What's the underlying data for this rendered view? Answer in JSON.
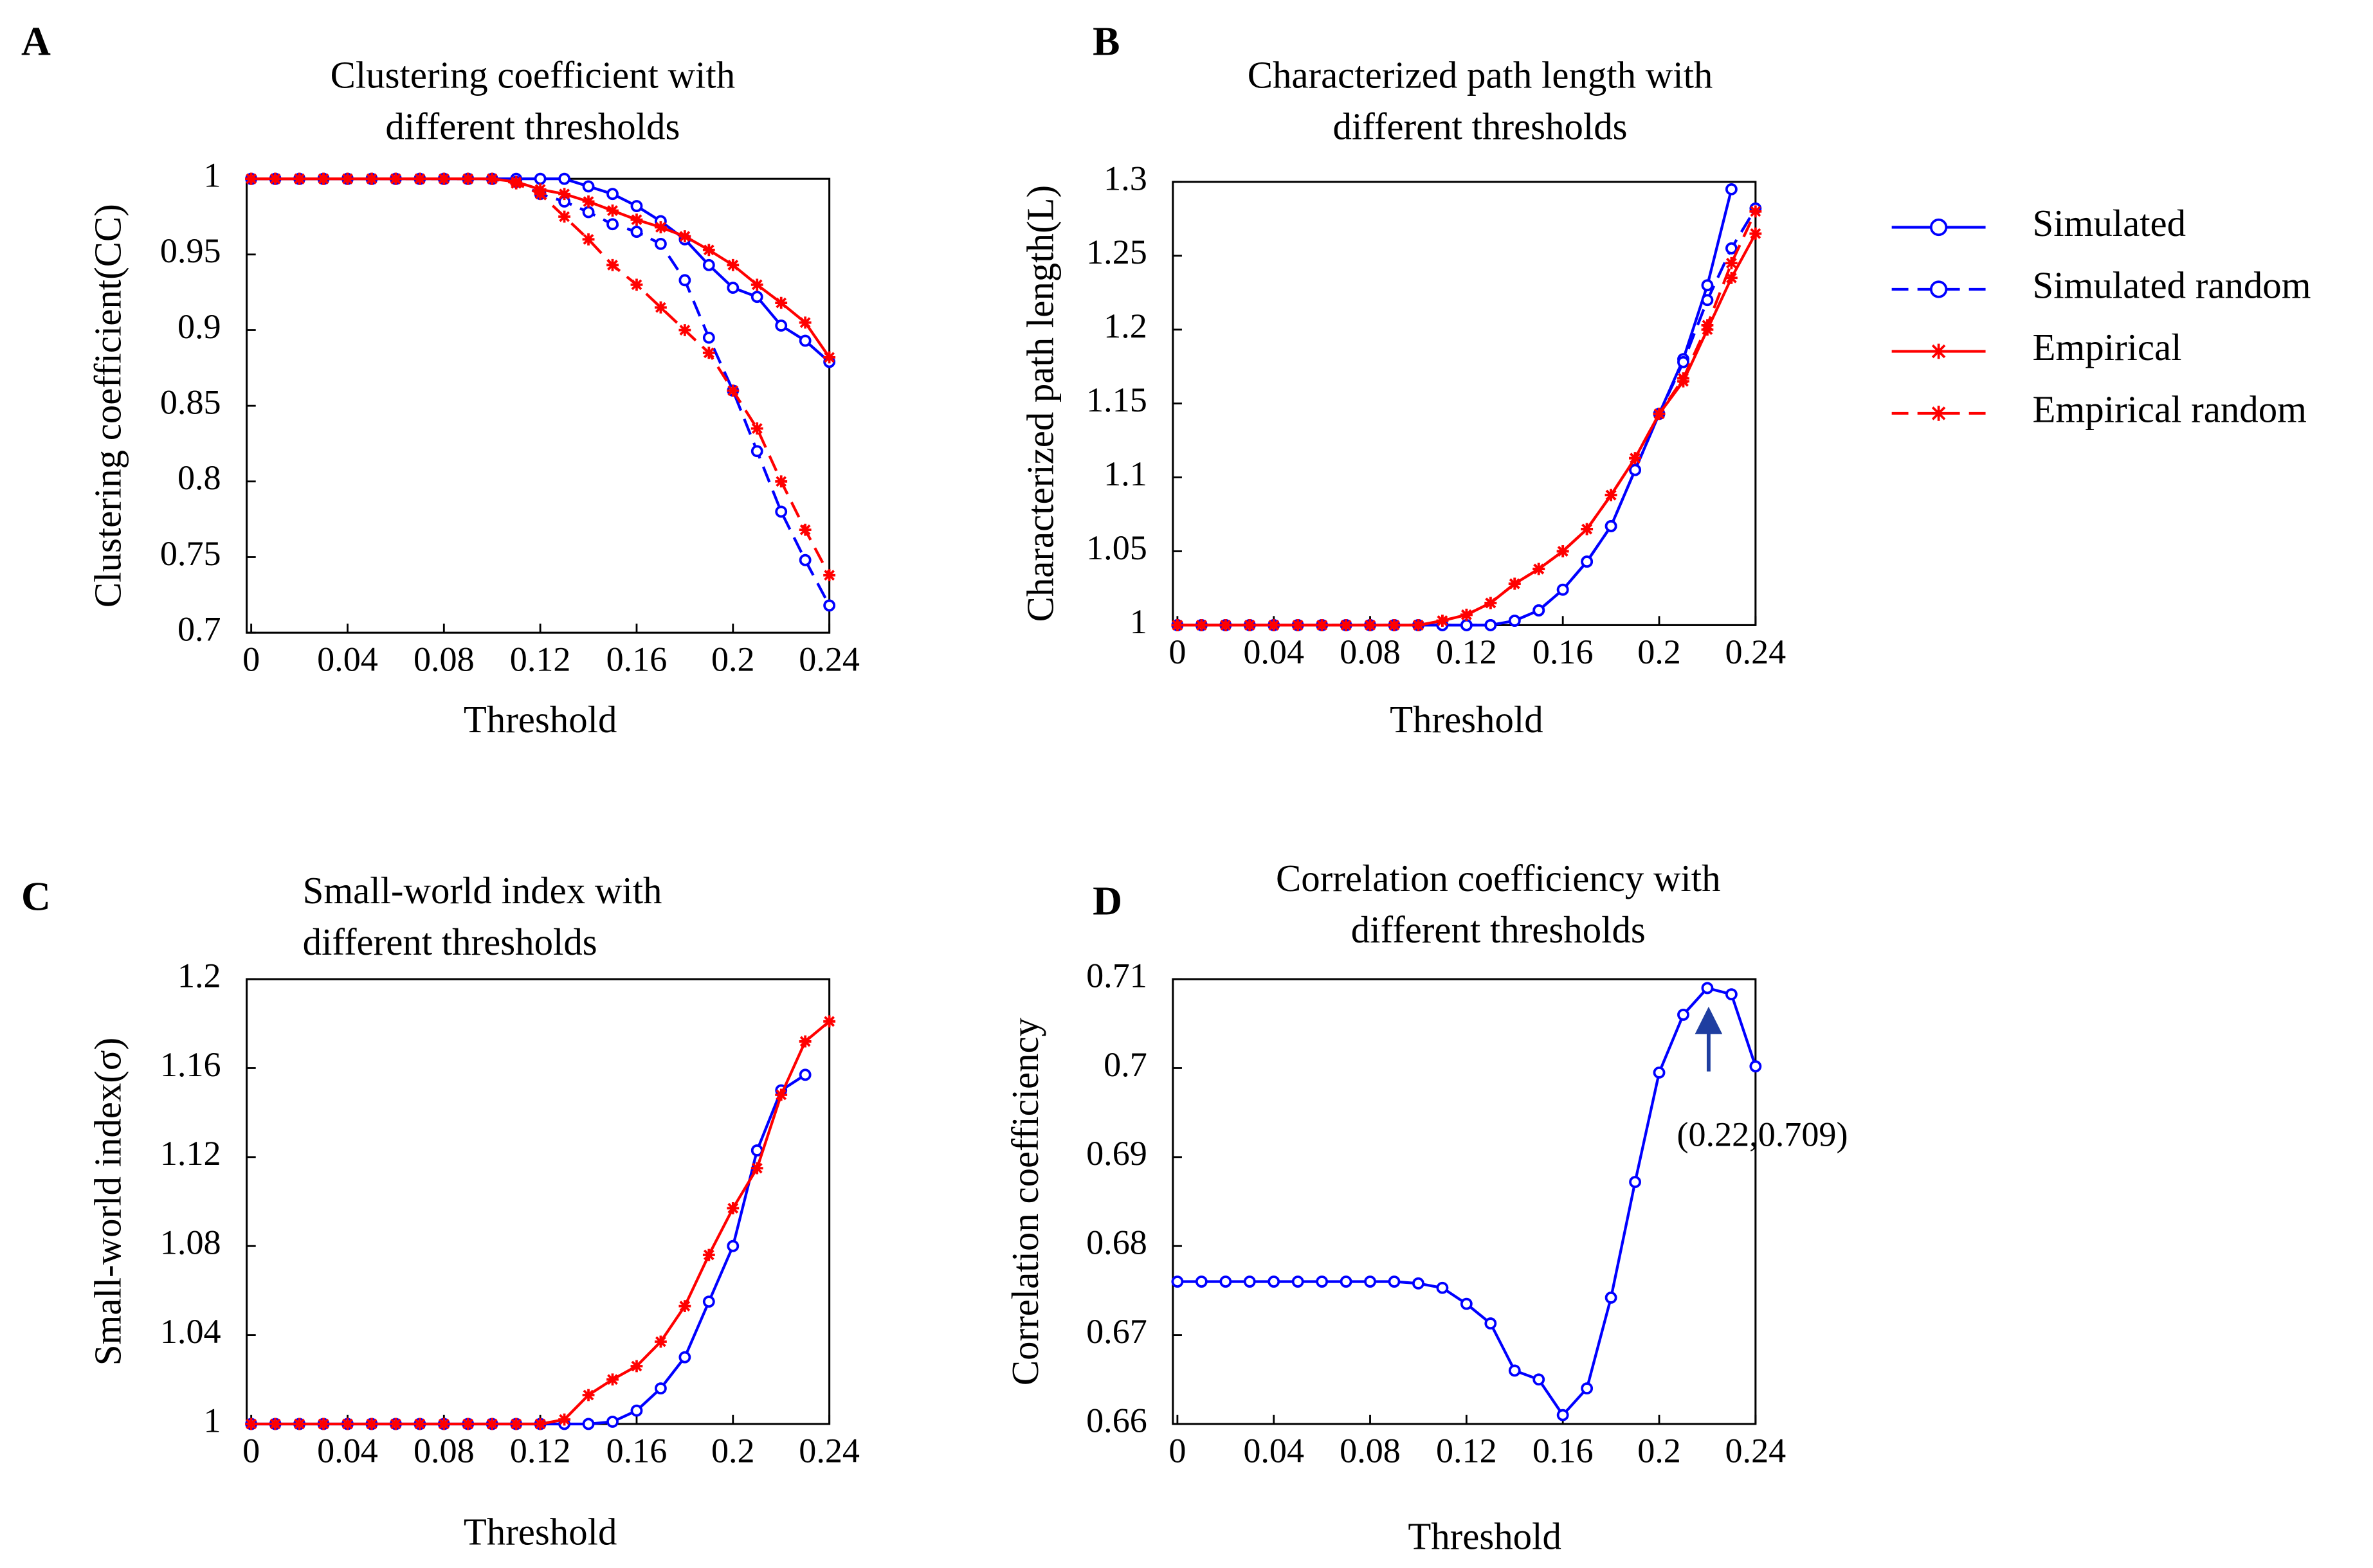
{
  "chart_data": [
    {
      "type": "line",
      "panel": "A",
      "title": [
        "Clustering coefficient with",
        "different thresholds"
      ],
      "x_label": "Threshold",
      "y_label": "Clustering coefficient(CC)",
      "x": [
        0,
        0.01,
        0.02,
        0.03,
        0.04,
        0.05,
        0.06,
        0.07,
        0.08,
        0.09,
        0.1,
        0.11,
        0.12,
        0.13,
        0.14,
        0.15,
        0.16,
        0.17,
        0.18,
        0.19,
        0.2,
        0.21,
        0.22,
        0.23,
        0.24
      ],
      "xlim": [
        0,
        0.24
      ],
      "xticks": [
        0,
        0.04,
        0.08,
        0.12,
        0.16,
        0.2,
        0.24
      ],
      "ylim": [
        0.7,
        1
      ],
      "yticks": [
        0.7,
        0.75,
        0.8,
        0.85,
        0.9,
        0.95,
        1
      ],
      "series": [
        {
          "color": "#0000ff",
          "dashed": false,
          "marker": "circle",
          "values": [
            1,
            1,
            1,
            1,
            1,
            1,
            1,
            1,
            1,
            1,
            1,
            1,
            1,
            1,
            0.995,
            0.99,
            0.982,
            0.972,
            0.96,
            0.943,
            0.928,
            0.922,
            0.903,
            0.893,
            0.879
          ]
        },
        {
          "color": "#0000ff",
          "dashed": true,
          "marker": "circle",
          "values": [
            1,
            1,
            1,
            1,
            1,
            1,
            1,
            1,
            1,
            1,
            1,
            0.998,
            0.99,
            0.985,
            0.978,
            0.97,
            0.965,
            0.957,
            0.933,
            0.895,
            0.86,
            0.82,
            0.78,
            0.748,
            0.718
          ]
        },
        {
          "color": "#ff0000",
          "dashed": false,
          "marker": "star",
          "values": [
            1,
            1,
            1,
            1,
            1,
            1,
            1,
            1,
            1,
            1,
            1,
            0.998,
            0.993,
            0.99,
            0.985,
            0.979,
            0.973,
            0.968,
            0.962,
            0.953,
            0.943,
            0.93,
            0.918,
            0.905,
            0.882
          ]
        },
        {
          "color": "#ff0000",
          "dashed": true,
          "marker": "star",
          "values": [
            1,
            1,
            1,
            1,
            1,
            1,
            1,
            1,
            1,
            1,
            1,
            0.997,
            0.99,
            0.975,
            0.96,
            0.943,
            0.93,
            0.915,
            0.9,
            0.885,
            0.86,
            0.835,
            0.8,
            0.768,
            0.738
          ]
        }
      ]
    },
    {
      "type": "line",
      "panel": "B",
      "title": [
        "Characterized path length with",
        "different thresholds"
      ],
      "x_label": "Threshold",
      "y_label": "Characterized path length(L)",
      "x": [
        0,
        0.01,
        0.02,
        0.03,
        0.04,
        0.05,
        0.06,
        0.07,
        0.08,
        0.09,
        0.1,
        0.11,
        0.12,
        0.13,
        0.14,
        0.15,
        0.16,
        0.17,
        0.18,
        0.19,
        0.2,
        0.21,
        0.22,
        0.23,
        0.24
      ],
      "xlim": [
        0,
        0.24
      ],
      "xticks": [
        0,
        0.04,
        0.08,
        0.12,
        0.16,
        0.2,
        0.24
      ],
      "ylim": [
        1,
        1.3
      ],
      "yticks": [
        1,
        1.05,
        1.1,
        1.15,
        1.2,
        1.25,
        1.3
      ],
      "series": [
        {
          "name": "Simulated",
          "color": "#0000ff",
          "dashed": false,
          "marker": "circle",
          "values": [
            1,
            1,
            1,
            1,
            1,
            1,
            1,
            1,
            1,
            1,
            1,
            1,
            1,
            1,
            1.003,
            1.01,
            1.024,
            1.043,
            1.067,
            1.105,
            1.143,
            1.18,
            1.23,
            1.295,
            null
          ]
        },
        {
          "name": "Simulated random",
          "color": "#0000ff",
          "dashed": true,
          "marker": "circle",
          "values": [
            1,
            1,
            1,
            1,
            1,
            1,
            1,
            1,
            1,
            1,
            1,
            1,
            1,
            1,
            1.003,
            1.01,
            1.024,
            1.043,
            1.067,
            1.105,
            1.143,
            1.178,
            1.22,
            1.255,
            1.282
          ]
        },
        {
          "name": "Empirical",
          "color": "#ff0000",
          "dashed": false,
          "marker": "star",
          "values": [
            1,
            1,
            1,
            1,
            1,
            1,
            1,
            1,
            1,
            1,
            1,
            1.003,
            1.007,
            1.015,
            1.028,
            1.038,
            1.05,
            1.065,
            1.088,
            1.113,
            1.143,
            1.165,
            1.2,
            1.235,
            1.265
          ]
        },
        {
          "name": "Empirical random",
          "color": "#ff0000",
          "dashed": true,
          "marker": "star",
          "values": [
            1,
            1,
            1,
            1,
            1,
            1,
            1,
            1,
            1,
            1,
            1,
            1.003,
            1.007,
            1.015,
            1.028,
            1.038,
            1.05,
            1.065,
            1.088,
            1.113,
            1.143,
            1.167,
            1.203,
            1.245,
            1.28
          ]
        }
      ]
    },
    {
      "type": "line",
      "panel": "C",
      "title": [
        "Small-world index with",
        "different thresholds"
      ],
      "x_label": "Threshold",
      "y_label": "Small-world index(σ)",
      "x": [
        0,
        0.01,
        0.02,
        0.03,
        0.04,
        0.05,
        0.06,
        0.07,
        0.08,
        0.09,
        0.1,
        0.11,
        0.12,
        0.13,
        0.14,
        0.15,
        0.16,
        0.17,
        0.18,
        0.19,
        0.2,
        0.21,
        0.22,
        0.23,
        0.24
      ],
      "xlim": [
        0,
        0.24
      ],
      "xticks": [
        0,
        0.04,
        0.08,
        0.12,
        0.16,
        0.2,
        0.24
      ],
      "ylim": [
        1,
        1.2
      ],
      "yticks": [
        1,
        1.04,
        1.08,
        1.12,
        1.16,
        1.2
      ],
      "series": [
        {
          "color": "#0000ff",
          "dashed": false,
          "marker": "circle",
          "values": [
            1,
            1,
            1,
            1,
            1,
            1,
            1,
            1,
            1,
            1,
            1,
            1,
            1,
            1,
            1,
            1.001,
            1.006,
            1.016,
            1.03,
            1.055,
            1.08,
            1.123,
            1.15,
            1.157,
            null
          ]
        },
        {
          "color": "#ff0000",
          "dashed": false,
          "marker": "star",
          "values": [
            1,
            1,
            1,
            1,
            1,
            1,
            1,
            1,
            1,
            1,
            1,
            1,
            1,
            1.002,
            1.013,
            1.02,
            1.026,
            1.037,
            1.053,
            1.076,
            1.097,
            1.115,
            1.148,
            1.172,
            1.181
          ]
        }
      ]
    },
    {
      "type": "line",
      "panel": "D",
      "title": [
        "Correlation coefficiency with",
        "different thresholds"
      ],
      "x_label": "Threshold",
      "y_label": "Correlation coefficiency",
      "x": [
        0,
        0.01,
        0.02,
        0.03,
        0.04,
        0.05,
        0.06,
        0.07,
        0.08,
        0.09,
        0.1,
        0.11,
        0.12,
        0.13,
        0.14,
        0.15,
        0.16,
        0.17,
        0.18,
        0.19,
        0.2,
        0.21,
        0.22,
        0.23,
        0.24
      ],
      "xlim": [
        0,
        0.24
      ],
      "xticks": [
        0,
        0.04,
        0.08,
        0.12,
        0.16,
        0.2,
        0.24
      ],
      "ylim": [
        0.66,
        0.71
      ],
      "yticks": [
        0.66,
        0.67,
        0.68,
        0.69,
        0.7,
        0.71
      ],
      "annotation": "(0.22,0.709)",
      "series": [
        {
          "color": "#0000ff",
          "dashed": false,
          "marker": "circle",
          "values": [
            0.676,
            0.676,
            0.676,
            0.676,
            0.676,
            0.676,
            0.676,
            0.676,
            0.676,
            0.676,
            0.6758,
            0.6753,
            0.6735,
            0.6713,
            0.666,
            0.665,
            0.661,
            0.664,
            0.6742,
            0.6872,
            0.6995,
            0.706,
            0.709,
            0.7083,
            0.7002
          ]
        }
      ]
    }
  ]
}
